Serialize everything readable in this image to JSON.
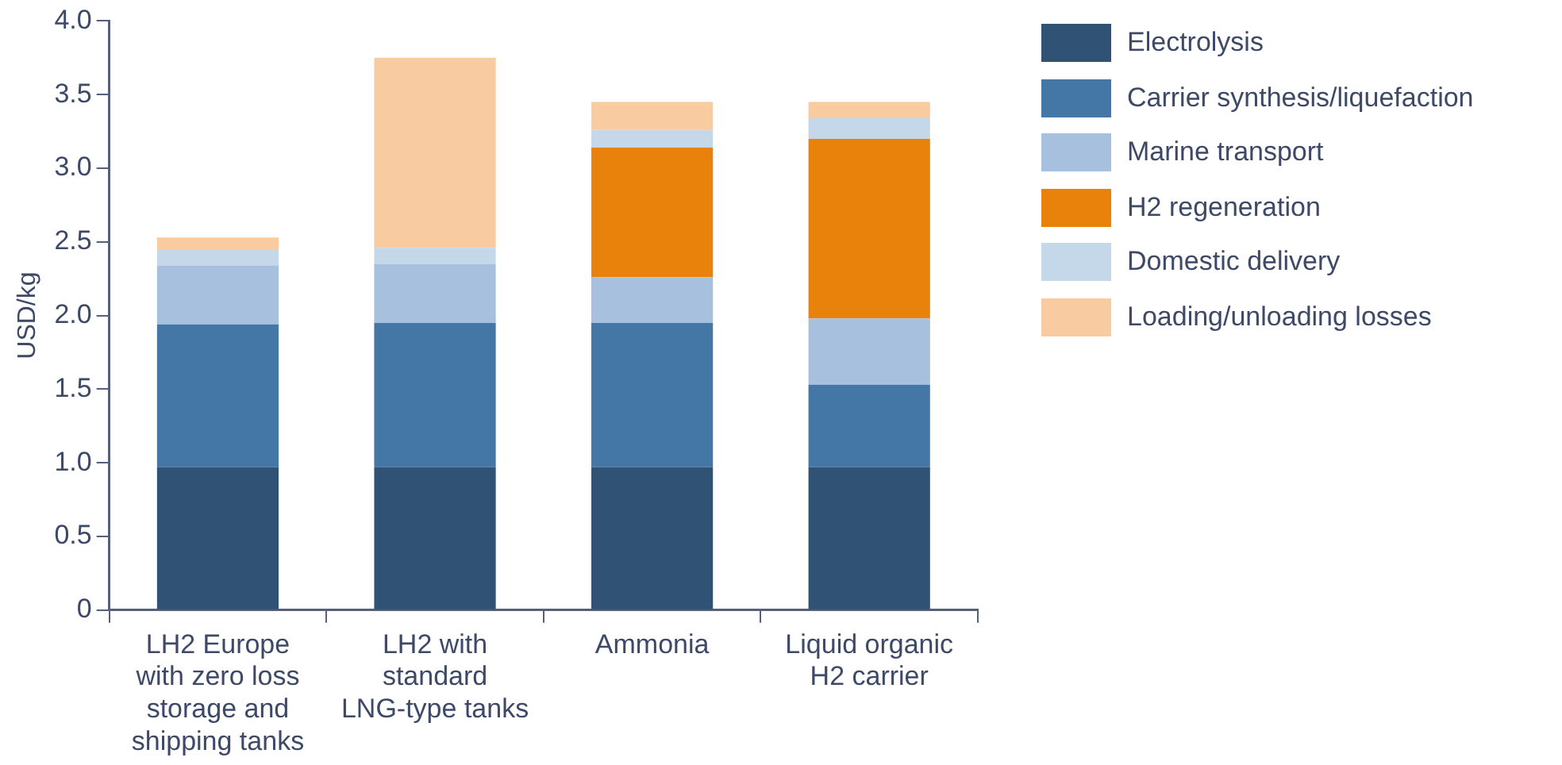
{
  "chart_data": {
    "type": "bar",
    "stacked": true,
    "ylabel": "USD/kg",
    "categories": [
      "LH2 Europe with zero loss storage and shipping tanks",
      "LH2 with standard LNG-type tanks",
      "Ammonia",
      "Liquid organic H2 carrier"
    ],
    "series": [
      {
        "name": "Electrolysis",
        "color": "#2f5275",
        "values": [
          0.97,
          0.97,
          0.97,
          0.97
        ]
      },
      {
        "name": "Carrier synthesis/liquefaction",
        "color": "#4477a5",
        "values": [
          0.97,
          0.98,
          0.98,
          0.56
        ]
      },
      {
        "name": "Marine transport",
        "color": "#a6c0dd",
        "values": [
          0.4,
          0.4,
          0.31,
          0.45
        ]
      },
      {
        "name": "H2 regeneration",
        "color": "#e8820a",
        "values": [
          null,
          null,
          0.88,
          1.22
        ]
      },
      {
        "name": "Domestic delivery",
        "color": "#c5d8ea",
        "values": [
          0.11,
          0.11,
          0.12,
          0.14
        ]
      },
      {
        "name": "Loading/unloading losses",
        "color": "#f9cba0",
        "values": [
          0.08,
          1.29,
          0.19,
          0.11
        ]
      }
    ],
    "ylim": [
      0,
      4
    ],
    "yticks": [
      0,
      {
        "value": 0.5,
        "label": "0.5"
      },
      {
        "value": 1,
        "label": "1.0"
      },
      {
        "value": 1.5,
        "label": "1.5"
      },
      {
        "value": 2,
        "label": "2.0"
      },
      {
        "value": 2.5,
        "label": "2.5"
      },
      {
        "value": 3,
        "label": "3.0"
      },
      {
        "value": 3.5,
        "label": "3.5"
      },
      {
        "value": 4,
        "label": "4.0"
      }
    ],
    "grid": false,
    "legend": "right"
  }
}
